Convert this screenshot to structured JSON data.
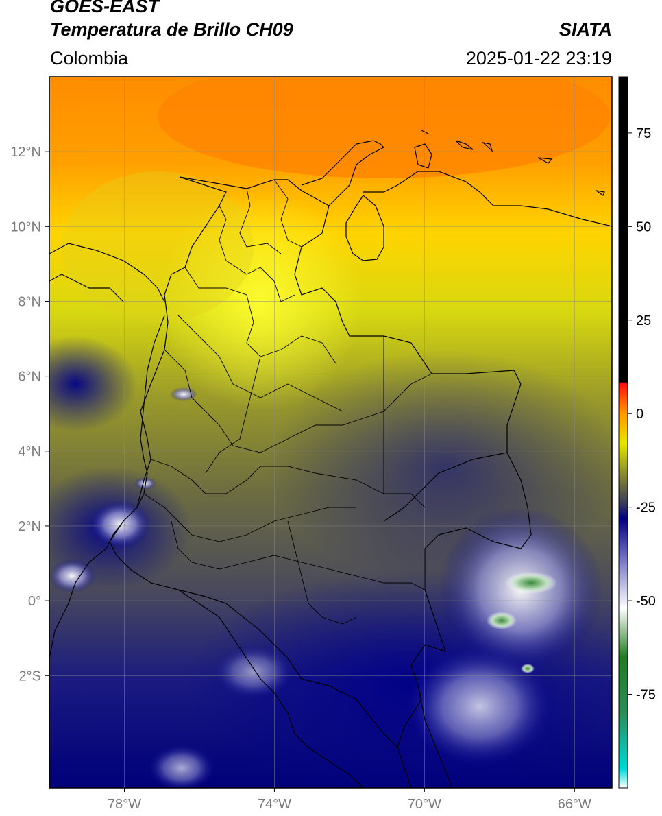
{
  "header": {
    "satellite": "GOES-EAST",
    "product": "Temperatura de Brillo CH09",
    "brand": "SIATA",
    "region": "Colombia",
    "timestamp": "2025-01-22 23:19"
  },
  "map": {
    "lon_range": [
      -80,
      -65
    ],
    "lat_range": [
      -5,
      14
    ],
    "lon_ticks": [
      {
        "value": -78,
        "label": "78°W"
      },
      {
        "value": -74,
        "label": "74°W"
      },
      {
        "value": -70,
        "label": "70°W"
      },
      {
        "value": -66,
        "label": "66°W"
      }
    ],
    "lat_ticks": [
      {
        "value": 12,
        "label": "12°N"
      },
      {
        "value": 10,
        "label": "10°N"
      },
      {
        "value": 8,
        "label": "8°N"
      },
      {
        "value": 6,
        "label": "6°N"
      },
      {
        "value": 4,
        "label": "4°N"
      },
      {
        "value": 2,
        "label": "2°N"
      },
      {
        "value": 0,
        "label": "0°"
      },
      {
        "value": -2,
        "label": "2°S"
      }
    ]
  },
  "colorbar": {
    "range": [
      -100,
      90
    ],
    "ticks": [
      {
        "value": 75,
        "label": "75"
      },
      {
        "value": 50,
        "label": "50"
      },
      {
        "value": 25,
        "label": "25"
      },
      {
        "value": 0,
        "label": "0"
      },
      {
        "value": -25,
        "label": "-25"
      },
      {
        "value": -50,
        "label": "-50"
      },
      {
        "value": -75,
        "label": "-75"
      }
    ],
    "stops": [
      {
        "value": -100,
        "color": "#ffffff"
      },
      {
        "value": -95,
        "color": "#00d8d8"
      },
      {
        "value": -80,
        "color": "#2e8b57"
      },
      {
        "value": -65,
        "color": "#227a22"
      },
      {
        "value": -52,
        "color": "#ffffff"
      },
      {
        "value": -40,
        "color": "#8080c8"
      },
      {
        "value": -28,
        "color": "#000080"
      },
      {
        "value": -24,
        "color": "#3a3a5a"
      },
      {
        "value": -16,
        "color": "#8a8a30"
      },
      {
        "value": -8,
        "color": "#e6e600"
      },
      {
        "value": 0,
        "color": "#ff9900"
      },
      {
        "value": 8,
        "color": "#ff1010"
      },
      {
        "value": 8.5,
        "color": "#000000"
      },
      {
        "value": 90,
        "color": "#000000"
      }
    ]
  }
}
